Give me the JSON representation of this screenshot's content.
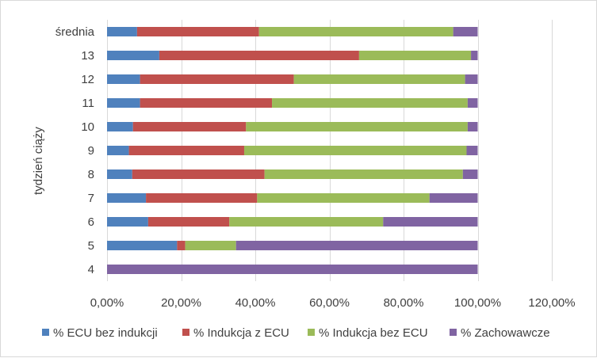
{
  "chart_data": {
    "type": "bar",
    "orientation": "horizontal",
    "stacked": true,
    "title": "",
    "xlabel": "",
    "ylabel": "tydzień ciąży",
    "categories": [
      "4",
      "5",
      "6",
      "7",
      "8",
      "9",
      "10",
      "11",
      "12",
      "13",
      "średnia"
    ],
    "series": [
      {
        "name": "% ECU bez indukcji",
        "color": "#4f81bd",
        "values": [
          0.0,
          18.9,
          11.1,
          10.5,
          6.8,
          5.9,
          7.0,
          8.9,
          8.9,
          14.1,
          8.1
        ]
      },
      {
        "name": "% Indukcja z ECU",
        "color": "#c0504d",
        "values": [
          0.0,
          2.2,
          21.9,
          30.0,
          35.7,
          31.1,
          30.5,
          35.6,
          41.5,
          53.9,
          32.9
        ]
      },
      {
        "name": "% Indukcja bez ECU",
        "color": "#9bbb59",
        "values": [
          0.0,
          13.7,
          41.5,
          46.5,
          53.5,
          60.0,
          59.8,
          52.8,
          46.2,
          30.2,
          52.4
        ]
      },
      {
        "name": "% Zachowawcze",
        "color": "#8064a2",
        "values": [
          100.0,
          65.2,
          25.5,
          13.0,
          4.0,
          3.0,
          2.7,
          2.7,
          3.4,
          1.8,
          6.6
        ]
      }
    ],
    "xlim": [
      0,
      120
    ],
    "xticks": [
      "0,00%",
      "20,00%",
      "40,00%",
      "60,00%",
      "80,00%",
      "100,00%",
      "120,00%"
    ],
    "grid": "vertical",
    "legend_position": "bottom"
  }
}
